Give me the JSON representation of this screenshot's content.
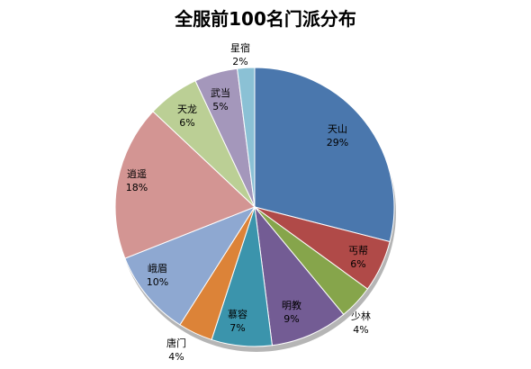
{
  "chart_data": {
    "type": "pie",
    "title": "全服前100名门派分布",
    "categories": [
      "天山",
      "丐帮",
      "少林",
      "明教",
      "慕容",
      "唐门",
      "峨眉",
      "逍遥",
      "天龙",
      "武当",
      "星宿"
    ],
    "values": [
      29,
      6,
      4,
      9,
      7,
      4,
      10,
      18,
      6,
      5,
      2
    ],
    "value_labels": [
      "29%",
      "6%",
      "4%",
      "9%",
      "7%",
      "4%",
      "10%",
      "18%",
      "6%",
      "5%",
      "2%"
    ],
    "colors": [
      "#4A77AD",
      "#B04A48",
      "#86A54B",
      "#735C94",
      "#3B94AC",
      "#DC8338",
      "#8EA8D1",
      "#D39593",
      "#BBCF95",
      "#A497BB",
      "#8BC1D5"
    ],
    "start": "12 o'clock",
    "direction": "clockwise",
    "legend": "none",
    "label_position": "inside-and-outside"
  }
}
